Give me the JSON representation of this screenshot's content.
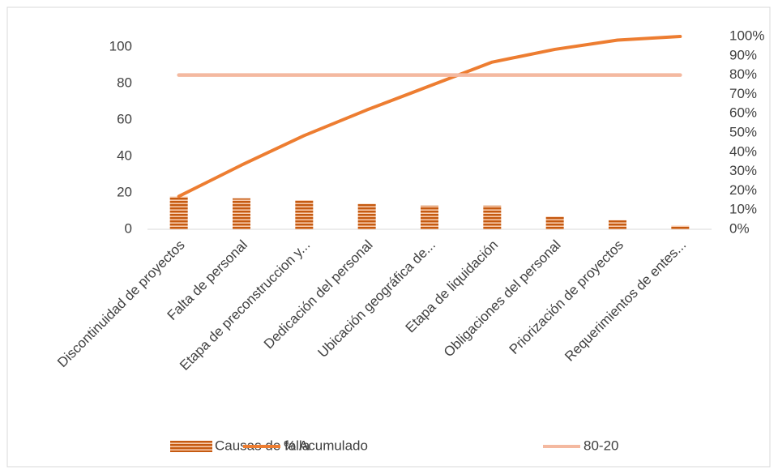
{
  "chart_data": {
    "type": "pareto",
    "categories": [
      "Discontinuidad de proyectos",
      "Falta de personal",
      "Etapa de preconstruccion y...",
      "Dedicación del personal",
      "Ubicación geográfica de...",
      "Etapa de liquidación",
      "Obligaciones del personal",
      "Priorización de proyectos",
      "Requerimientos de entes..."
    ],
    "series": [
      {
        "name": "Causas de falla",
        "type": "bar",
        "color": "#c55a11",
        "values": [
          18,
          17,
          16,
          14,
          13,
          13,
          7,
          5,
          2
        ]
      },
      {
        "name": "% Acumulado",
        "type": "line",
        "axis": "y2",
        "color": "#ed7d31",
        "values": [
          17.1,
          33.3,
          48.6,
          61.9,
          74.3,
          86.7,
          93.3,
          98.1,
          100
        ]
      },
      {
        "name": "80-20",
        "type": "line",
        "axis": "y2",
        "color": "#f4b9a0",
        "values": [
          80,
          80,
          80,
          80,
          80,
          80,
          80,
          80,
          80
        ]
      }
    ],
    "ylim": [
      0,
      105
    ],
    "yticks": [
      0,
      20,
      40,
      60,
      80,
      100
    ],
    "y2lim": [
      0,
      100
    ],
    "y2ticks": [
      {
        "value": 0,
        "label": "0%"
      },
      {
        "value": 10,
        "label": "10%"
      },
      {
        "value": 20,
        "label": "20%"
      },
      {
        "value": 30,
        "label": "30%"
      },
      {
        "value": 40,
        "label": "40%"
      },
      {
        "value": 50,
        "label": "50%"
      },
      {
        "value": 60,
        "label": "60%"
      },
      {
        "value": 70,
        "label": "70%"
      },
      {
        "value": 80,
        "label": "80%"
      },
      {
        "value": 90,
        "label": "90%"
      },
      {
        "value": 100,
        "label": "100%"
      }
    ],
    "legend": "bottom"
  }
}
